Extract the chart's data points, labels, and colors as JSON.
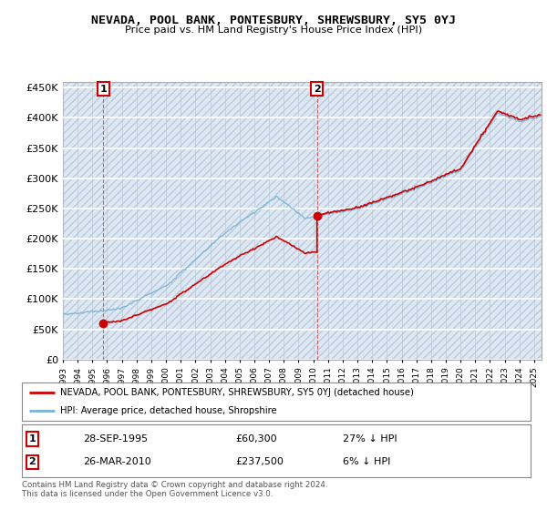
{
  "title": "NEVADA, POOL BANK, PONTESBURY, SHREWSBURY, SY5 0YJ",
  "subtitle": "Price paid vs. HM Land Registry's House Price Index (HPI)",
  "ylim": [
    0,
    460000
  ],
  "yticks": [
    0,
    50000,
    100000,
    150000,
    200000,
    250000,
    300000,
    350000,
    400000,
    450000
  ],
  "ytick_labels": [
    "£0",
    "£50K",
    "£100K",
    "£150K",
    "£200K",
    "£250K",
    "£300K",
    "£350K",
    "£400K",
    "£450K"
  ],
  "sale1_year": 1995.75,
  "sale1_price": 60300,
  "sale2_year": 2010.25,
  "sale2_price": 237500,
  "hpi_color": "#7ab4d8",
  "price_color": "#cc0000",
  "plot_bg_color": "#dce9f5",
  "hatch_color": "#c0c8d8",
  "grid_color": "#b8c8d8",
  "legend_line1": "NEVADA, POOL BANK, PONTESBURY, SHREWSBURY, SY5 0YJ (detached house)",
  "legend_line2": "HPI: Average price, detached house, Shropshire",
  "table_row1": [
    "1",
    "28-SEP-1995",
    "£60,300",
    "27% ↓ HPI"
  ],
  "table_row2": [
    "2",
    "26-MAR-2010",
    "£237,500",
    "6% ↓ HPI"
  ],
  "footer": "Contains HM Land Registry data © Crown copyright and database right 2024.\nThis data is licensed under the Open Government Licence v3.0.",
  "xmin": 1993,
  "xmax": 2025.5
}
